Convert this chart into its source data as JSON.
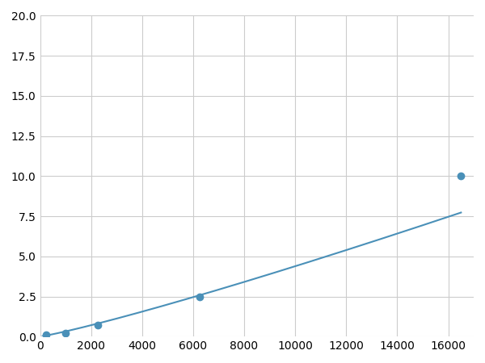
{
  "x_markers": [
    250,
    1000,
    2250,
    6250,
    16500
  ],
  "y_markers": [
    0.1,
    0.2,
    0.7,
    2.5,
    10.0
  ],
  "line_color": "#4a90b8",
  "marker_color": "#4a90b8",
  "marker_size": 6,
  "xlim": [
    0,
    17000
  ],
  "ylim": [
    0,
    20
  ],
  "xticks": [
    0,
    2000,
    4000,
    6000,
    8000,
    10000,
    12000,
    14000,
    16000
  ],
  "yticks": [
    0.0,
    2.5,
    5.0,
    7.5,
    10.0,
    12.5,
    15.0,
    17.5,
    20.0
  ],
  "grid_color": "#cccccc",
  "background_color": "#ffffff",
  "tick_fontsize": 10
}
